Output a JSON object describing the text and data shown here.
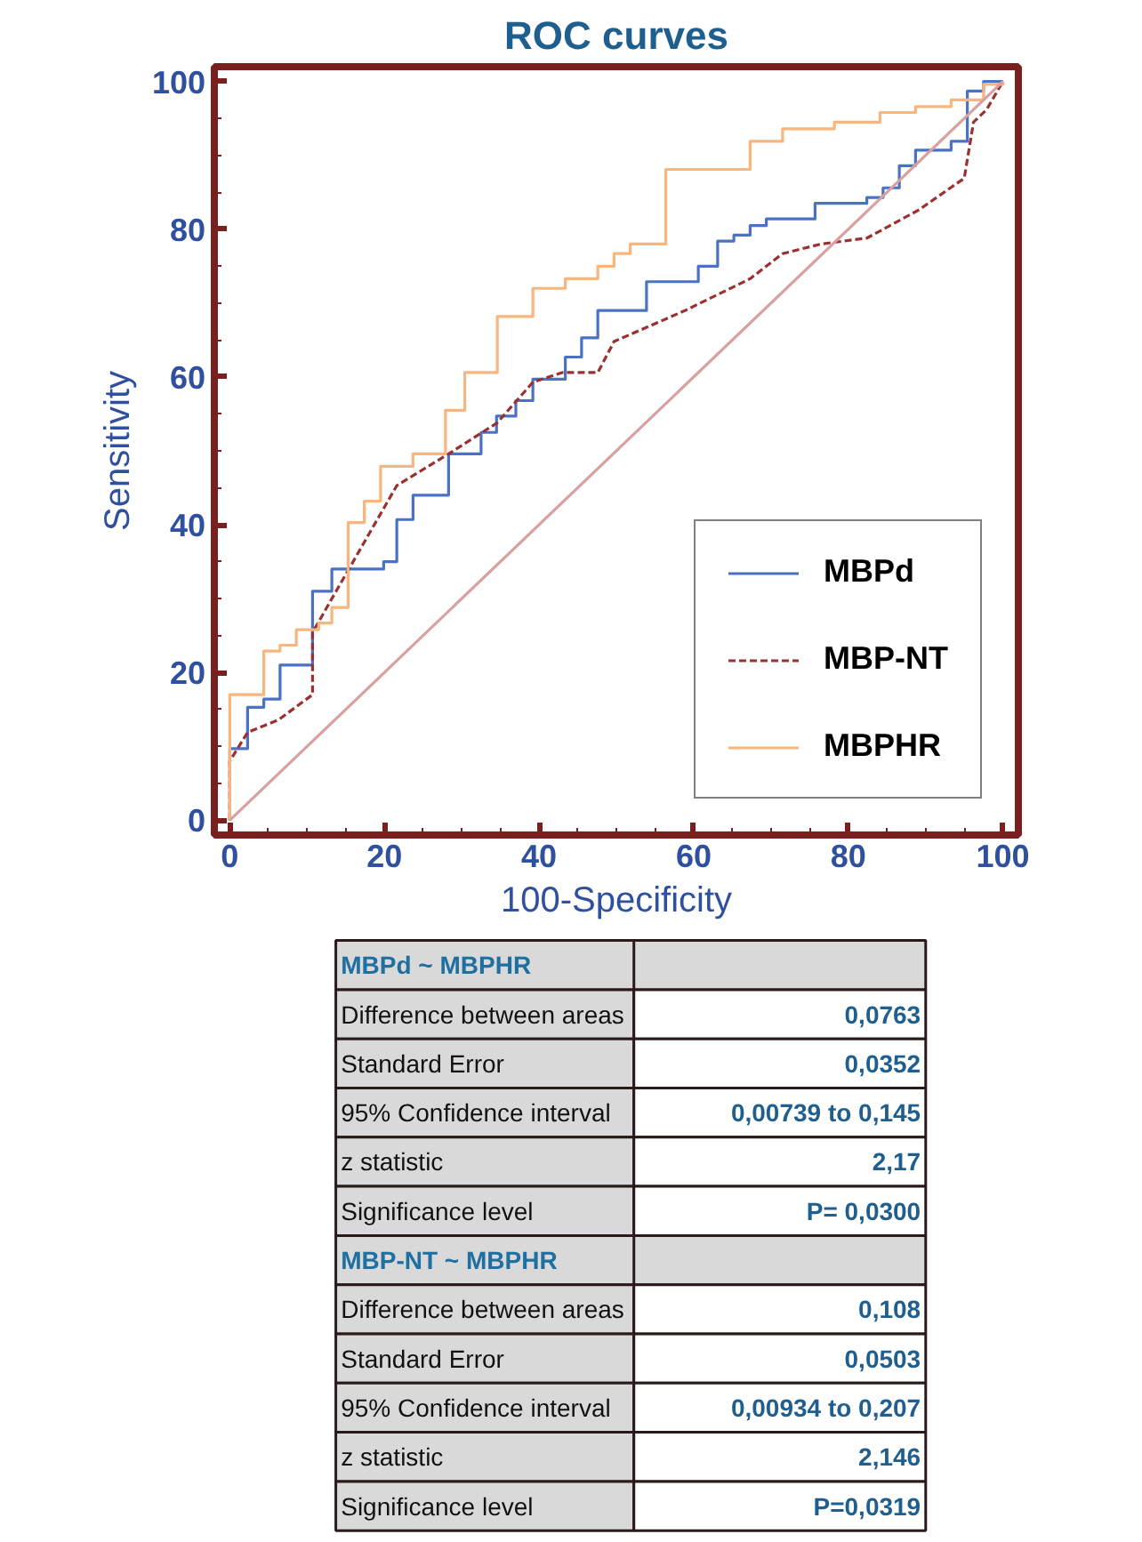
{
  "chart_data": [
    {
      "type": "step",
      "title": "ROC curves",
      "xlabel": "100-Specificity",
      "ylabel": "Sensitivity",
      "xlim": [
        -2,
        102
      ],
      "ylim": [
        -2,
        102
      ],
      "xticks": [
        0,
        20,
        40,
        60,
        80,
        100
      ],
      "yticks": [
        0,
        20,
        40,
        60,
        80,
        100
      ],
      "grid": false,
      "legend": "bottom right",
      "marker": "none",
      "series": [
        {
          "name": "MBPd",
          "color": "#4a72c4",
          "x": [
            0,
            0,
            2.3,
            4.4,
            6.5,
            10.7,
            13.2,
            19.9,
            21.6,
            23.7,
            28.3,
            32.5,
            34.5,
            37,
            39.2,
            43.4,
            45.5,
            47.6,
            53.9,
            60.6,
            63.1,
            65.2,
            67.3,
            69.4,
            75.7,
            82.4,
            84.5,
            86.6,
            88.7,
            93.3,
            95.4,
            97.5,
            100
          ],
          "values": [
            0,
            9.7,
            15.3,
            16.4,
            21,
            31,
            34,
            35,
            40.7,
            44,
            49.6,
            52.5,
            54.7,
            56.8,
            59.7,
            62.7,
            65.3,
            69,
            72.9,
            75,
            78.4,
            79.2,
            80.5,
            81.4,
            83.5,
            84.3,
            85.6,
            88.6,
            90.7,
            91.9,
            98.7,
            100,
            100
          ]
        },
        {
          "name": "MBP-NT",
          "type": "line",
          "line_style": "dashed",
          "color": "#9b3030",
          "x": [
            0,
            0,
            2.3,
            6.3,
            10.7,
            10.7,
            13.2,
            21.6,
            28.3,
            34.6,
            39.2,
            43,
            47.6,
            49.7,
            58.9,
            67.3,
            71.5,
            76.5,
            82.4,
            89.1,
            95,
            96.2,
            97.9,
            100
          ],
          "values": [
            0,
            8,
            11.9,
            13.6,
            17,
            25.4,
            30,
            45.3,
            49.6,
            53.8,
            59.3,
            60.6,
            60.6,
            64.8,
            69,
            73.3,
            76.7,
            78,
            78.8,
            82.6,
            86.9,
            94.5,
            96.2,
            100
          ]
        },
        {
          "name": "MBPHR",
          "color": "#f8b57e",
          "x": [
            0,
            0,
            4.4,
            6.5,
            8.6,
            11.5,
            13.2,
            15.3,
            17.4,
            19.5,
            23.7,
            27.9,
            30.4,
            34.6,
            39.2,
            43.4,
            47.6,
            49.7,
            51.8,
            56.4,
            67.3,
            71.5,
            78.2,
            84.1,
            88.7,
            93.3,
            97.5,
            100
          ],
          "values": [
            0,
            17,
            22.9,
            23.7,
            25.8,
            26.7,
            28.8,
            40.3,
            43.2,
            47.9,
            49.6,
            55.5,
            60.6,
            68.2,
            72,
            73.3,
            75,
            76.7,
            78,
            88.1,
            91.9,
            93.6,
            94.5,
            95.8,
            96.6,
            97.5,
            99.6,
            100
          ]
        },
        {
          "type": "line",
          "color": "#d9a0a0",
          "x": [
            0,
            100
          ],
          "values": [
            0,
            100
          ]
        }
      ]
    },
    {
      "type": "other",
      "y_categories": [
        "MBPd ~ MBPHR",
        "Difference between areas",
        "Standard Error",
        "95% Confidence interval",
        "z statistic",
        "Significance level",
        "MBP-NT ~ MBPHR",
        "Difference between areas",
        "Standard Error",
        "95% Confidence interval",
        "z statistic",
        "Significance level"
      ],
      "cell_labels": [
        [
          null
        ],
        [
          "0,0763"
        ],
        [
          "0,0352"
        ],
        [
          "0,00739 to 0,145"
        ],
        [
          "2,17"
        ],
        [
          "P= 0,0300"
        ],
        [
          null
        ],
        [
          "0,108"
        ],
        [
          "0,0503"
        ],
        [
          "0,00934 to 0,207"
        ],
        [
          "2,146"
        ],
        [
          "P=0,0319"
        ]
      ]
    }
  ]
}
